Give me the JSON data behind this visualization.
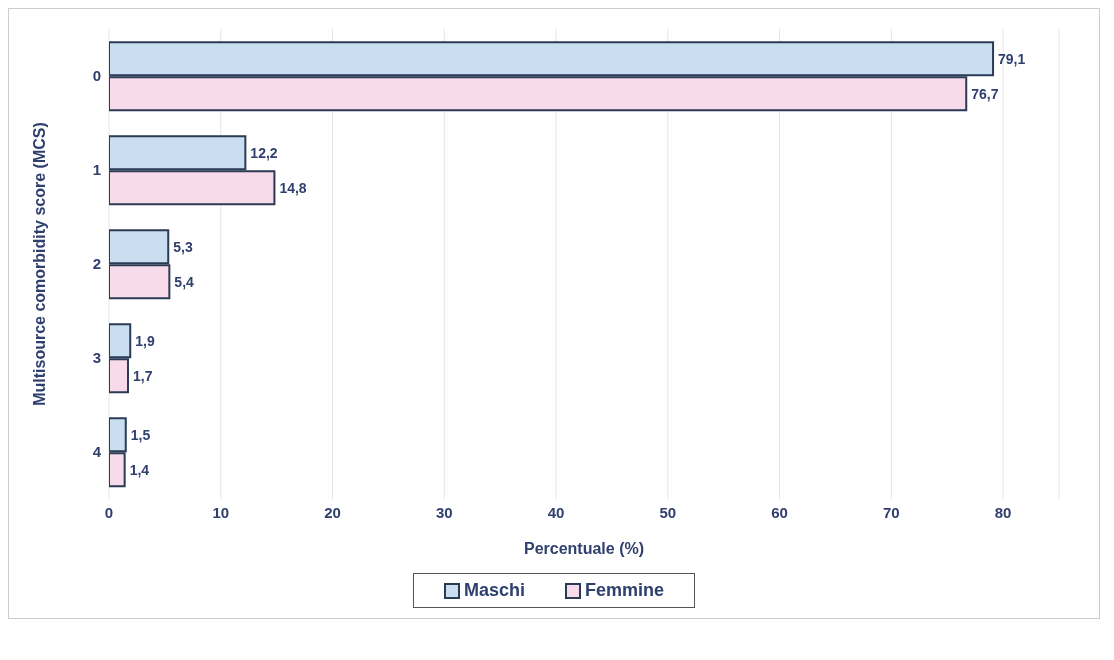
{
  "chart_data": {
    "type": "bar",
    "orientation": "horizontal",
    "ylabel": "Multisource comorbidity score (MCS)",
    "xlabel": "Percentuale (%)",
    "categories": [
      "0",
      "1",
      "2",
      "3",
      "4"
    ],
    "series": [
      {
        "name": "Maschi",
        "color": "#c9def0",
        "values": [
          79.1,
          12.2,
          5.3,
          1.9,
          1.5
        ],
        "value_labels": [
          "79,1",
          "12,2",
          "5,3",
          "1,9",
          "1,5"
        ]
      },
      {
        "name": "Femmine",
        "color": "#f7dbeb",
        "values": [
          76.7,
          14.8,
          5.4,
          1.7,
          1.4
        ],
        "value_labels": [
          "76,7",
          "14,8",
          "5,4",
          "1,7",
          "1,4"
        ]
      }
    ],
    "xlim": [
      0,
      85
    ],
    "xticks": [
      0,
      10,
      20,
      30,
      40,
      50,
      60,
      70,
      80
    ],
    "grid": "x",
    "legend": "bottom"
  }
}
